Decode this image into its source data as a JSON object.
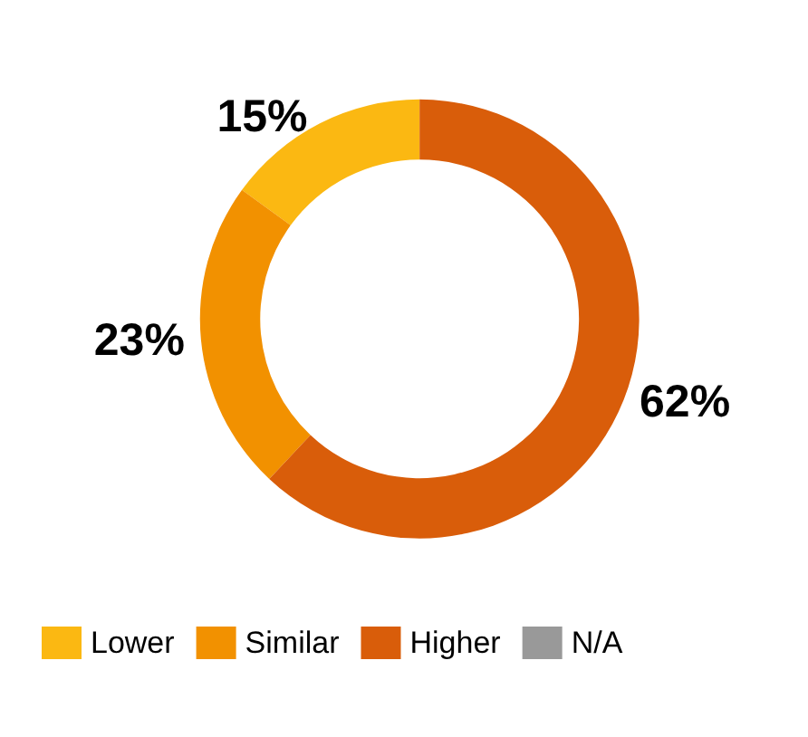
{
  "chart_data": {
    "type": "donut",
    "categories": [
      "Lower",
      "Similar",
      "Higher",
      "N/A"
    ],
    "values": [
      15,
      23,
      62,
      0
    ],
    "value_labels": [
      "15%",
      "23%",
      "62%",
      null
    ],
    "colors": [
      "#fbb812",
      "#f29100",
      "#d95d0a",
      "#999999"
    ],
    "legend": "bottom"
  }
}
